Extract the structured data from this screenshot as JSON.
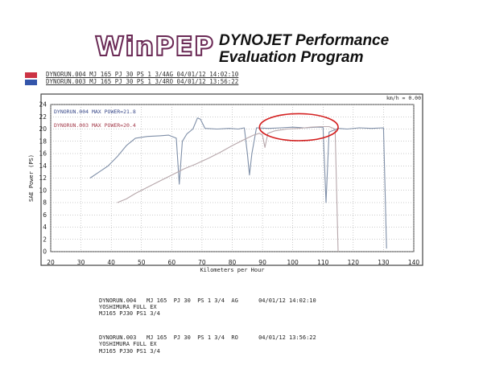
{
  "header": {
    "logo_text": "WinPEP",
    "title_line1": "DYNOJET Performance",
    "title_line2": "Evaluation Program"
  },
  "run_list": [
    {
      "text": "DYNORUN.004  MJ 165  PJ 30  PS 1 3/4AG 04/01/12 14:02:10",
      "color": "#cc3344"
    },
    {
      "text": "DYNORUN.003  MJ 165  PJ 30  PS 1 3/4RO 04/01/12 13:56:22",
      "color": "#3355aa"
    }
  ],
  "legend": {
    "run1": "DYNORUN.004  MAX POWER=21.8",
    "run2": "DYNORUN.003  MAX POWER=20.4"
  },
  "kmh_readout": "km/h = 0.00",
  "chart_data": {
    "type": "line",
    "title": "",
    "xlabel": "Kilometers per Hour",
    "ylabel": "SAE Power (PS)",
    "xlim": [
      20,
      140
    ],
    "ylim": [
      0,
      24
    ],
    "xticks": [
      20,
      30,
      40,
      50,
      60,
      70,
      80,
      90,
      100,
      110,
      120,
      130,
      140
    ],
    "yticks": [
      0,
      2,
      4,
      6,
      8,
      10,
      12,
      14,
      16,
      18,
      20,
      22,
      24
    ],
    "grid": true,
    "series": [
      {
        "name": "DYNORUN.004",
        "color": "#7f8fa8",
        "points": [
          [
            33,
            12
          ],
          [
            36,
            13
          ],
          [
            39,
            14
          ],
          [
            42,
            15.5
          ],
          [
            45,
            17.3
          ],
          [
            48,
            18.5
          ],
          [
            52,
            18.8
          ],
          [
            56,
            18.9
          ],
          [
            59,
            19
          ],
          [
            61.5,
            18.5
          ],
          [
            62.5,
            11
          ],
          [
            63.5,
            18
          ],
          [
            65,
            19.2
          ],
          [
            67,
            20
          ],
          [
            68.5,
            21.8
          ],
          [
            69.5,
            21.6
          ],
          [
            71,
            20.1
          ],
          [
            75,
            20
          ],
          [
            79,
            20.1
          ],
          [
            82,
            20
          ],
          [
            84,
            20.2
          ],
          [
            85,
            16
          ],
          [
            85.7,
            12.5
          ],
          [
            86.5,
            16
          ],
          [
            88,
            20.2
          ],
          [
            92,
            20.1
          ],
          [
            96,
            20.2
          ],
          [
            100,
            20.3
          ],
          [
            104,
            20.2
          ],
          [
            108,
            20.3
          ],
          [
            110,
            20.3
          ],
          [
            111,
            8
          ],
          [
            112,
            19.5
          ],
          [
            115,
            20.1
          ],
          [
            118,
            20
          ],
          [
            122,
            20.2
          ],
          [
            126,
            20.1
          ],
          [
            130,
            20.2
          ],
          [
            131,
            0.5
          ]
        ]
      },
      {
        "name": "DYNORUN.003",
        "color": "#b7a7ab",
        "points": [
          [
            42,
            8
          ],
          [
            45,
            8.6
          ],
          [
            48,
            9.5
          ],
          [
            52,
            10.5
          ],
          [
            56,
            11.5
          ],
          [
            60,
            12.5
          ],
          [
            64,
            13.5
          ],
          [
            68,
            14.3
          ],
          [
            72,
            15.2
          ],
          [
            76,
            16.2
          ],
          [
            80,
            17.3
          ],
          [
            84,
            18.3
          ],
          [
            87,
            19
          ],
          [
            89,
            19.3
          ],
          [
            90,
            19
          ],
          [
            90.8,
            17
          ],
          [
            91.8,
            19.3
          ],
          [
            94,
            19.7
          ],
          [
            98,
            20
          ],
          [
            102,
            20.1
          ],
          [
            106,
            20.3
          ],
          [
            109,
            20.4
          ],
          [
            112,
            20.4
          ],
          [
            114,
            20
          ],
          [
            115,
            0
          ]
        ]
      }
    ],
    "annotations": [
      {
        "type": "ellipse",
        "color": "#d42020",
        "cx": 102,
        "cy": 20.3,
        "rx": 13,
        "ry": 2.2
      }
    ]
  },
  "footer": {
    "block1": {
      "line1": "DYNORUN.004   MJ 165  PJ 30  PS 1 3/4  AG      04/01/12 14:02:10",
      "line2": "YOSHIMURA FULL EX",
      "line3": "MJ165 PJ30 PS1 3/4"
    },
    "block2": {
      "line1": "DYNORUN.003   MJ 165  PJ 30  PS 1 3/4  RO      04/01/12 13:56:22",
      "line2": "YOSHIMURA FULL EX",
      "line3": "MJ165 PJ30 PS1 3/4"
    }
  }
}
